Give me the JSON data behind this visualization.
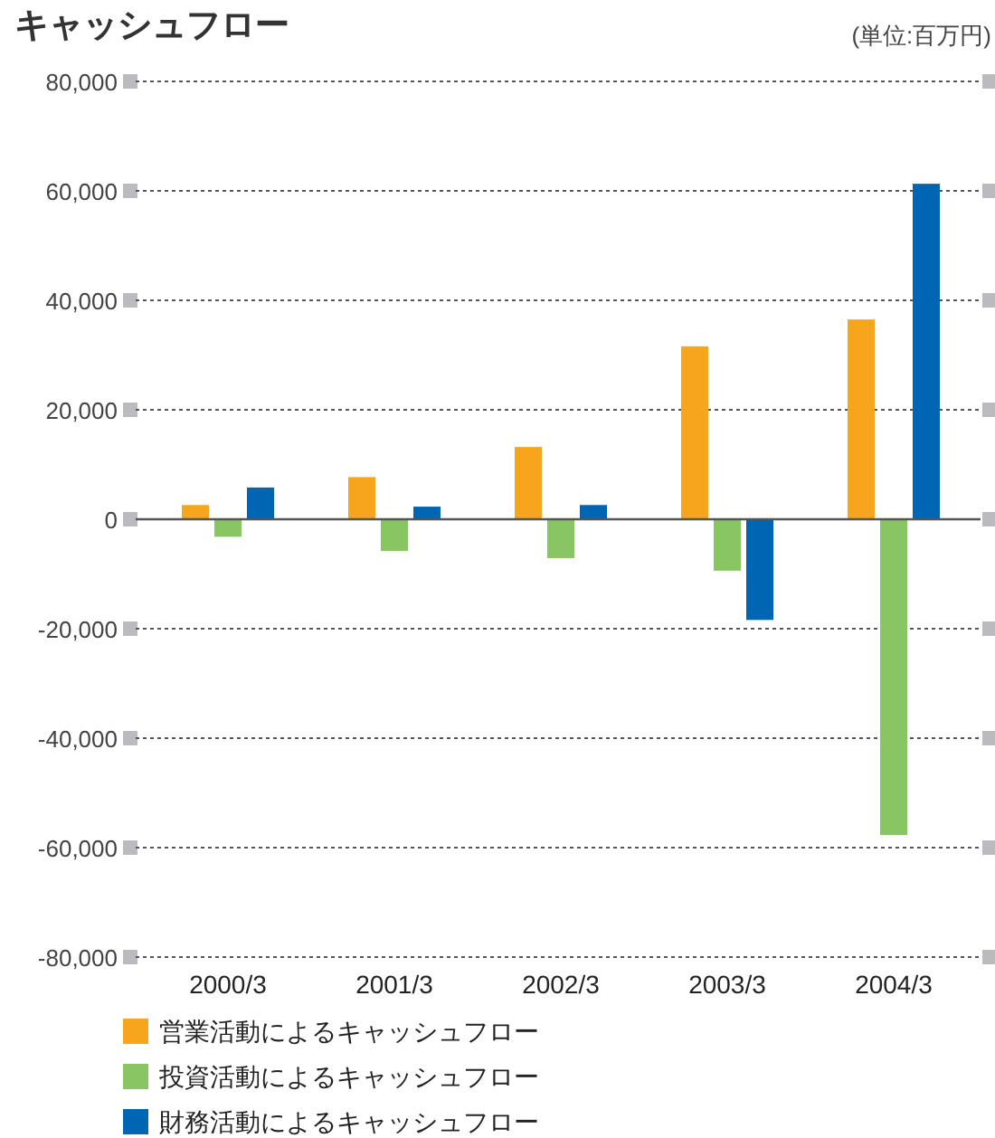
{
  "chart_data": {
    "type": "bar",
    "title": "キャッシュフロー",
    "annotations": [
      "(単位:百万円)"
    ],
    "categories": [
      "2000/3",
      "2001/3",
      "2002/3",
      "2003/3",
      "2004/3"
    ],
    "series": [
      {
        "name": "営業活動によるキャッシュフロー",
        "color": "#f7a51c",
        "values": [
          2600,
          7700,
          13200,
          31600,
          36500
        ]
      },
      {
        "name": "投資活動によるキャッシュフロー",
        "color": "#88c663",
        "values": [
          -3200,
          -5800,
          -7100,
          -9400,
          -57700
        ]
      },
      {
        "name": "財務活動によるキャッシュフロー",
        "color": "#0066b3",
        "values": [
          5800,
          2300,
          2600,
          -18400,
          61300
        ]
      }
    ],
    "ylim": [
      -80000,
      80000
    ],
    "yticks": [
      {
        "value": -80000,
        "label": "-80,000"
      },
      {
        "value": -60000,
        "label": "-60,000"
      },
      {
        "value": -40000,
        "label": "-40,000"
      },
      {
        "value": -20000,
        "label": "-20,000"
      },
      {
        "value": 0,
        "label": "0"
      },
      {
        "value": 20000,
        "label": "20,000"
      },
      {
        "value": 40000,
        "label": "40,000"
      },
      {
        "value": 60000,
        "label": "60,000"
      },
      {
        "value": 80000,
        "label": "80,000"
      }
    ],
    "grid": "y",
    "legend": "bottom"
  }
}
